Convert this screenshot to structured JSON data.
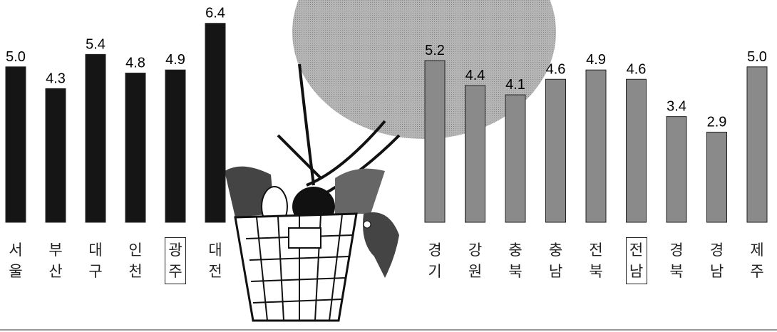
{
  "chart_data": [
    {
      "type": "bar",
      "categories": [
        "서울",
        "부산",
        "대구",
        "인천",
        "광주",
        "대전"
      ],
      "values": [
        5.0,
        4.3,
        5.4,
        4.8,
        4.9,
        6.4
      ],
      "value_labels": [
        "5.0",
        "4.3",
        "5.4",
        "4.8",
        "4.9",
        "6.4"
      ],
      "color": "#151515",
      "ylim": [
        0,
        7.15
      ],
      "highlight": 4
    },
    {
      "type": "bar",
      "categories": [
        "경기",
        "강원",
        "충북",
        "충남",
        "전북",
        "전남",
        "경북",
        "경남",
        "제주"
      ],
      "values": [
        5.2,
        4.4,
        4.1,
        4.6,
        4.9,
        4.6,
        3.4,
        2.9,
        5.0
      ],
      "value_labels": [
        "5.2",
        "4.4",
        "4.1",
        "4.6",
        "4.9",
        "4.6",
        "3.4",
        "2.9",
        "5.0"
      ],
      "color": "#8a8a8a",
      "ylim": [
        0,
        7.15
      ],
      "highlight": 5
    }
  ]
}
